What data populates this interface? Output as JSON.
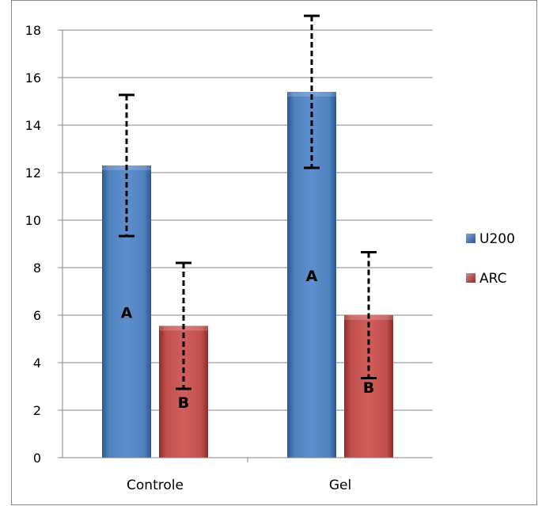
{
  "chart_data": {
    "type": "bar",
    "title": "",
    "xlabel": "",
    "ylabel": "",
    "categories": [
      "Controle",
      "Gel"
    ],
    "ylim": [
      0,
      18
    ],
    "yticks": [
      0,
      2,
      4,
      6,
      8,
      10,
      12,
      14,
      16,
      18
    ],
    "grid": true,
    "legend_position": "right",
    "error_bars": true,
    "series": [
      {
        "name": "U200",
        "color": "#4f81bd",
        "values": [
          12.3,
          15.4
        ],
        "errors": [
          2.97,
          3.2
        ],
        "letters": [
          "A",
          "A"
        ]
      },
      {
        "name": "ARC",
        "color": "#c0504d",
        "values": [
          5.55,
          6.0
        ],
        "errors": [
          2.65,
          2.65
        ],
        "letters": [
          "B",
          "B"
        ]
      }
    ]
  }
}
